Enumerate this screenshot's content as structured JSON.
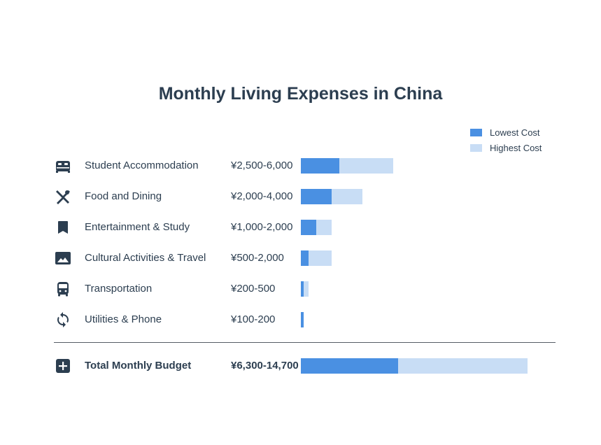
{
  "chart_data": {
    "type": "bar",
    "orientation": "horizontal",
    "stacked": "overlay",
    "title": "Monthly Living Expenses in China",
    "currency": "¥",
    "xlim": [
      0,
      15000
    ],
    "legend": {
      "placement": "top-right",
      "items": [
        {
          "label": "Lowest Cost",
          "color": "#4a90e2"
        },
        {
          "label": "Highest Cost",
          "color": "#c8ddf5"
        }
      ]
    },
    "series": [
      {
        "name": "Lowest Cost",
        "values": [
          2500,
          2000,
          1000,
          500,
          200,
          100,
          6300
        ]
      },
      {
        "name": "Highest Cost",
        "values": [
          6000,
          4000,
          2000,
          2000,
          500,
          200,
          14700
        ]
      }
    ],
    "rows": [
      {
        "icon": "bed-icon",
        "label": "Student Accommodation",
        "range": "¥2,500-6,000",
        "low": 2500,
        "high": 6000
      },
      {
        "icon": "utensils-icon",
        "label": "Food and Dining",
        "range": "¥2,000-4,000",
        "low": 2000,
        "high": 4000
      },
      {
        "icon": "bookmark-icon",
        "label": "Entertainment & Study",
        "range": "¥1,000-2,000",
        "low": 1000,
        "high": 2000
      },
      {
        "icon": "image-icon",
        "label": "Cultural Activities & Travel",
        "range": "¥500-2,000",
        "low": 500,
        "high": 2000
      },
      {
        "icon": "bus-icon",
        "label": "Transportation",
        "range": "¥200-500",
        "low": 200,
        "high": 500
      },
      {
        "icon": "sync-icon",
        "label": "Utilities & Phone",
        "range": "¥100-200",
        "low": 100,
        "high": 200
      }
    ],
    "total": {
      "icon": "plus-square-icon",
      "label": "Total Monthly Budget",
      "range": "¥6,300-14,700",
      "low": 6300,
      "high": 14700
    }
  },
  "colors": {
    "low": "#4a90e2",
    "high": "#c8ddf5",
    "text": "#2c3e50",
    "icon": "#2c3e50"
  }
}
